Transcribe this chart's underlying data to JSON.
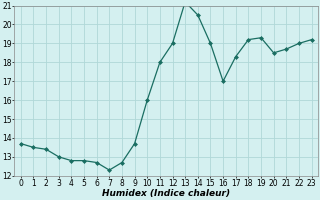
{
  "x": [
    0,
    1,
    2,
    3,
    4,
    5,
    6,
    7,
    8,
    9,
    10,
    11,
    12,
    13,
    14,
    15,
    16,
    17,
    18,
    19,
    20,
    21,
    22,
    23
  ],
  "y": [
    13.7,
    13.5,
    13.4,
    13.0,
    12.8,
    12.8,
    12.7,
    12.3,
    12.7,
    13.7,
    16.0,
    18.0,
    19.0,
    21.2,
    20.5,
    19.0,
    17.0,
    18.3,
    19.2,
    19.3,
    18.5,
    18.7,
    19.0,
    19.2
  ],
  "line_color": "#1a6e62",
  "marker": "D",
  "marker_size": 2,
  "background_color": "#d4f0f0",
  "grid_color": "#b0d8d8",
  "xlabel": "Humidex (Indice chaleur)",
  "ylim": [
    12,
    21
  ],
  "xlim": [
    -0.5,
    23.5
  ],
  "yticks": [
    12,
    13,
    14,
    15,
    16,
    17,
    18,
    19,
    20,
    21
  ],
  "xticks": [
    0,
    1,
    2,
    3,
    4,
    5,
    6,
    7,
    8,
    9,
    10,
    11,
    12,
    13,
    14,
    15,
    16,
    17,
    18,
    19,
    20,
    21,
    22,
    23
  ],
  "xlabel_fontsize": 6.5,
  "tick_fontsize": 5.5
}
